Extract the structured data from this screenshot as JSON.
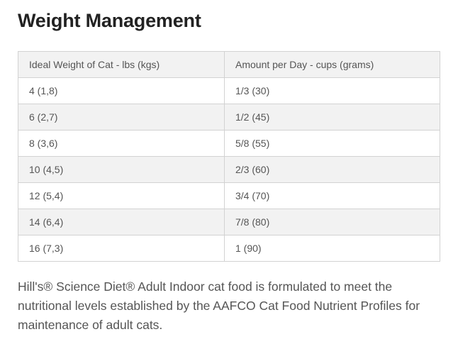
{
  "section": {
    "title": "Weight Management"
  },
  "table": {
    "headers": {
      "weight": "Ideal Weight of Cat - lbs (kgs)",
      "amount": "Amount per Day - cups (grams)"
    },
    "rows": [
      {
        "weight": "4 (1,8)",
        "amount": "1/3 (30)"
      },
      {
        "weight": "6 (2,7)",
        "amount": "1/2 (45)"
      },
      {
        "weight": "8 (3,6)",
        "amount": "5/8 (55)"
      },
      {
        "weight": "10 (4,5)",
        "amount": "2/3 (60)"
      },
      {
        "weight": "12 (5,4)",
        "amount": "3/4 (70)"
      },
      {
        "weight": "14 (6,4)",
        "amount": "7/8 (80)"
      },
      {
        "weight": "16 (7,3)",
        "amount": "1 (90)"
      }
    ]
  },
  "description": "Hill's® Science Diet® Adult Indoor cat food is formulated to meet the nutritional levels established by the AAFCO Cat Food Nutrient Profiles for maintenance of adult cats.",
  "colors": {
    "heading": "#222222",
    "text": "#555555",
    "border": "#d2d2d2",
    "shaded_row": "#f2f2f2"
  }
}
